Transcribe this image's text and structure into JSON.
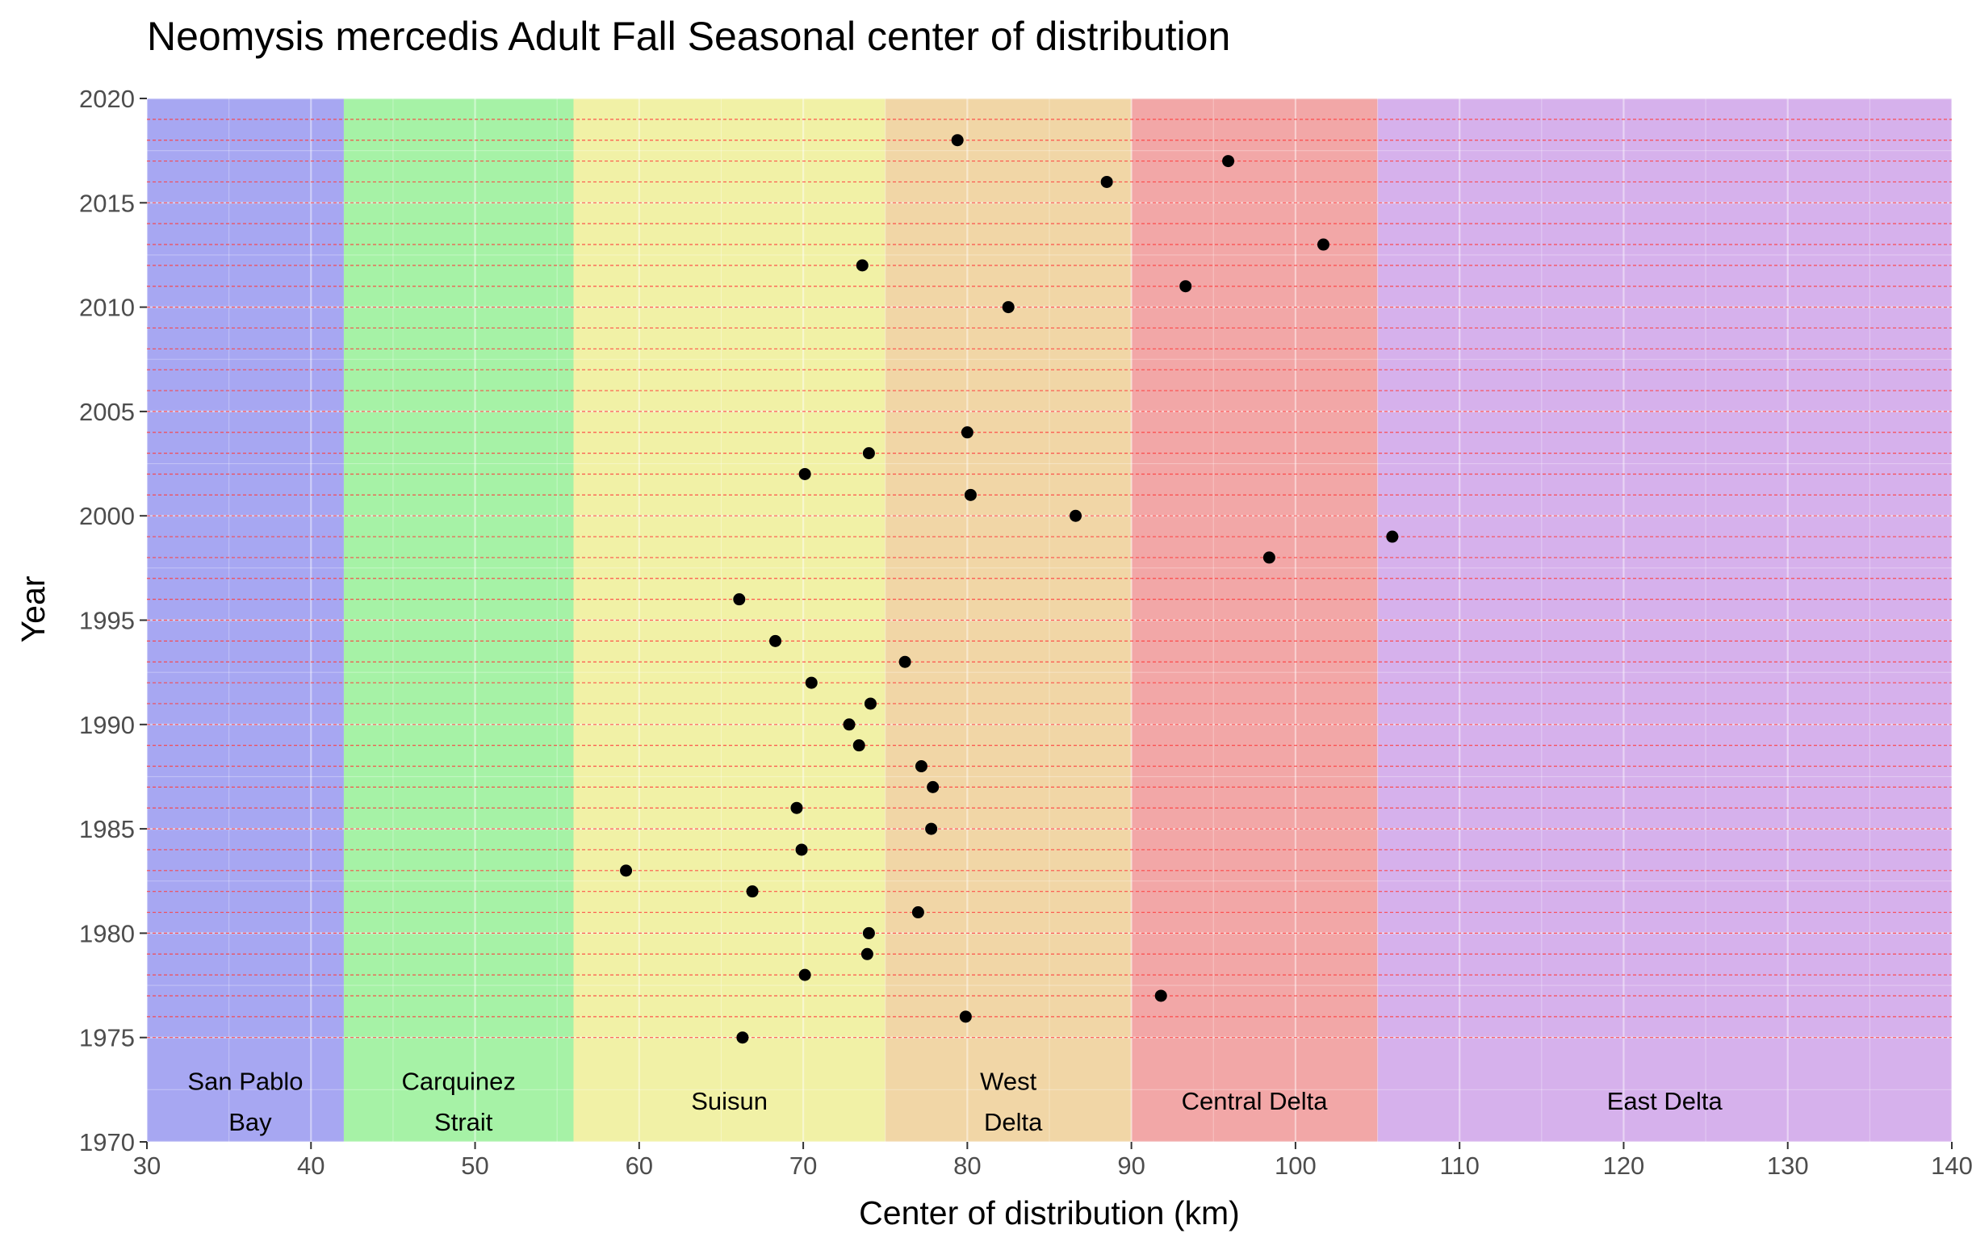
{
  "chart_data": {
    "type": "scatter",
    "title": "Neomysis mercedis Adult Fall Seasonal center of distribution",
    "xlabel": "Center of distribution (km)",
    "ylabel": "Year",
    "xlim": [
      30,
      140
    ],
    "ylim": [
      1970,
      2020
    ],
    "x_ticks": [
      30,
      40,
      50,
      60,
      70,
      80,
      90,
      100,
      110,
      120,
      130,
      140
    ],
    "y_ticks": [
      1970,
      1975,
      1980,
      1985,
      1990,
      1995,
      2000,
      2005,
      2010,
      2015,
      2020
    ],
    "grid": true,
    "year_reference_lines": {
      "from": 1975,
      "to": 2019,
      "step": 1,
      "color": "#ff3b3b",
      "style": "dashed"
    },
    "point_color": "#000000",
    "regions": [
      {
        "name": "San Pablo Bay",
        "label_lines": [
          "San Pablo",
          "Bay"
        ],
        "from": 30,
        "to": 42,
        "color": "#a7a7f2"
      },
      {
        "name": "Carquinez Strait",
        "label_lines": [
          "Carquinez",
          "Strait"
        ],
        "from": 42,
        "to": 56,
        "color": "#a6f2a6"
      },
      {
        "name": "Suisun",
        "label_lines": [
          "Suisun"
        ],
        "from": 56,
        "to": 75,
        "color": "#f1f1a6"
      },
      {
        "name": "West Delta",
        "label_lines": [
          "West",
          "Delta"
        ],
        "from": 75,
        "to": 90,
        "color": "#f1d6a6"
      },
      {
        "name": "Central Delta",
        "label_lines": [
          "Central Delta"
        ],
        "from": 90,
        "to": 105,
        "color": "#f2a7a7"
      },
      {
        "name": "East Delta",
        "label_lines": [
          "East Delta"
        ],
        "from": 105,
        "to": 140,
        "color": "#d6b1ec"
      }
    ],
    "points": [
      {
        "year": 1975,
        "x": 66.3
      },
      {
        "year": 1976,
        "x": 79.9
      },
      {
        "year": 1977,
        "x": 91.8
      },
      {
        "year": 1978,
        "x": 70.1
      },
      {
        "year": 1979,
        "x": 73.9
      },
      {
        "year": 1980,
        "x": 74.0
      },
      {
        "year": 1981,
        "x": 77.0
      },
      {
        "year": 1982,
        "x": 66.9
      },
      {
        "year": 1983,
        "x": 59.2
      },
      {
        "year": 1984,
        "x": 69.9
      },
      {
        "year": 1985,
        "x": 77.8
      },
      {
        "year": 1986,
        "x": 69.6
      },
      {
        "year": 1987,
        "x": 77.9
      },
      {
        "year": 1988,
        "x": 77.2
      },
      {
        "year": 1989,
        "x": 73.4
      },
      {
        "year": 1990,
        "x": 72.8
      },
      {
        "year": 1991,
        "x": 74.1
      },
      {
        "year": 1992,
        "x": 70.5
      },
      {
        "year": 1993,
        "x": 76.2
      },
      {
        "year": 1994,
        "x": 68.3
      },
      {
        "year": 1996,
        "x": 66.1
      },
      {
        "year": 1998,
        "x": 98.4
      },
      {
        "year": 1999,
        "x": 105.9
      },
      {
        "year": 2000,
        "x": 86.6
      },
      {
        "year": 2001,
        "x": 80.2
      },
      {
        "year": 2002,
        "x": 70.1
      },
      {
        "year": 2003,
        "x": 74.0
      },
      {
        "year": 2004,
        "x": 80.0
      },
      {
        "year": 2010,
        "x": 82.5
      },
      {
        "year": 2011,
        "x": 93.3
      },
      {
        "year": 2012,
        "x": 73.6
      },
      {
        "year": 2013,
        "x": 101.7
      },
      {
        "year": 2016,
        "x": 88.5
      },
      {
        "year": 2017,
        "x": 95.9
      },
      {
        "year": 2018,
        "x": 79.4
      }
    ]
  }
}
